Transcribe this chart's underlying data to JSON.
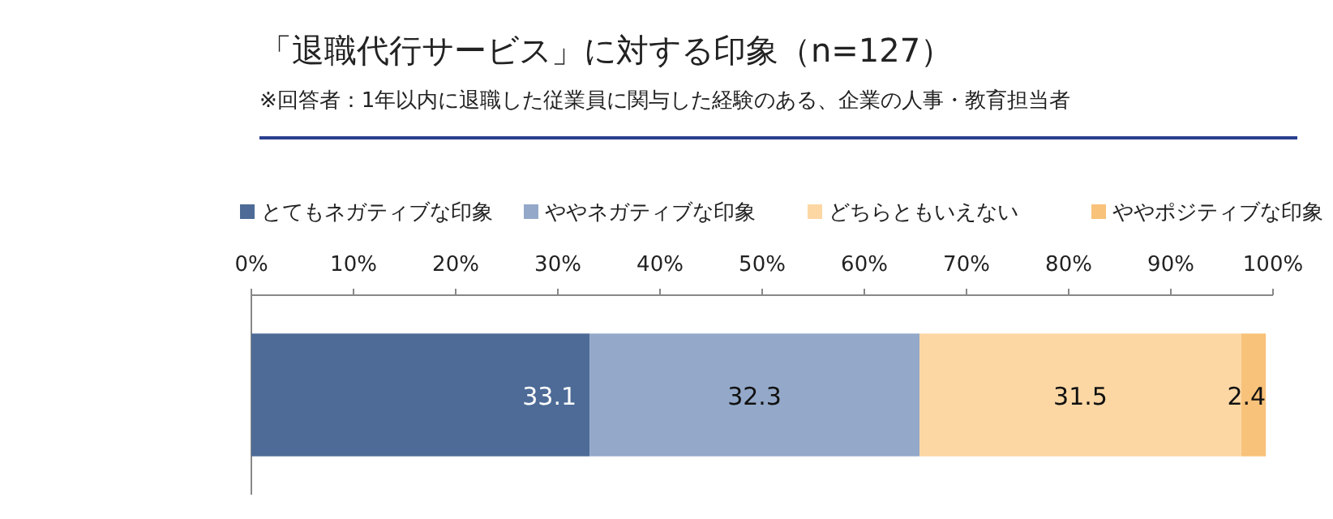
{
  "chart_data": {
    "type": "bar",
    "orientation": "horizontal",
    "stacked": true,
    "title": "「退職代行サービス」に対する印象（n=127）",
    "subtitle": "※回答者：1年以内に退職した従業員に関与した経験のある、企業の人事・教育担当者",
    "categories": [
      null
    ],
    "series": [
      {
        "name": "とてもネガティブな印象",
        "color": "#4d6b96",
        "values": [
          33.1
        ]
      },
      {
        "name": "ややネガティブな印象",
        "color": "#94a9c9",
        "values": [
          32.3
        ]
      },
      {
        "name": "どちらともいえない",
        "color": "#fcd7a4",
        "values": [
          31.5
        ]
      },
      {
        "name": "ややポジティブな印象",
        "color": "#f8c27a",
        "values": [
          2.4
        ]
      }
    ],
    "xlim": [
      0,
      100
    ],
    "xticks": [
      {
        "value": 0,
        "label": "0%"
      },
      {
        "value": 10,
        "label": "10%"
      },
      {
        "value": 20,
        "label": "20%"
      },
      {
        "value": 30,
        "label": "30%"
      },
      {
        "value": 40,
        "label": "40%"
      },
      {
        "value": 50,
        "label": "50%"
      },
      {
        "value": 60,
        "label": "60%"
      },
      {
        "value": 70,
        "label": "70%"
      },
      {
        "value": 80,
        "label": "80%"
      },
      {
        "value": 90,
        "label": "90%"
      },
      {
        "value": 100,
        "label": "100%"
      }
    ],
    "data_labels": true,
    "legend": "top",
    "grid": false
  }
}
